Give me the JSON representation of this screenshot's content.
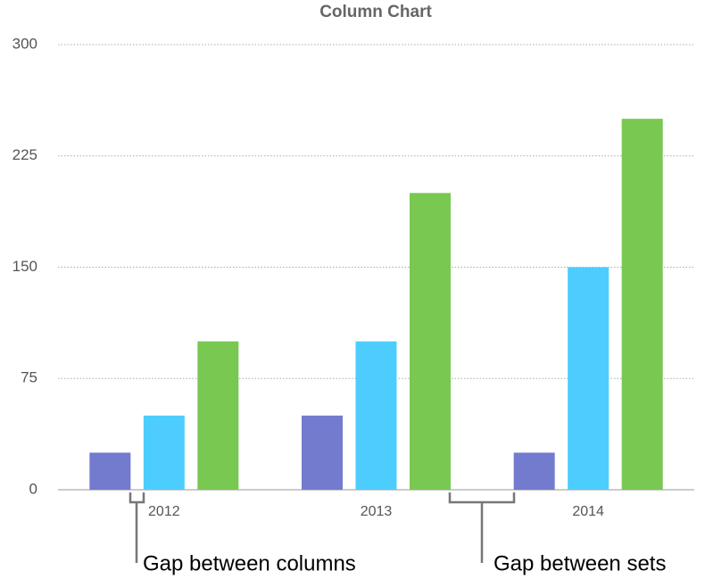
{
  "chart_data": {
    "type": "bar",
    "title": "Column Chart",
    "categories": [
      "2012",
      "2013",
      "2014"
    ],
    "series": [
      {
        "color": "#737bcf",
        "values": [
          25,
          50,
          25
        ]
      },
      {
        "color": "#4ccdfd",
        "values": [
          50,
          100,
          150
        ]
      },
      {
        "color": "#78c852",
        "values": [
          100,
          200,
          250
        ]
      }
    ],
    "ylim": [
      0,
      300
    ],
    "yticks": [
      0,
      75,
      150,
      225,
      300
    ],
    "grid": true,
    "annotations": [
      "Gap between columns",
      "Gap between sets"
    ]
  }
}
